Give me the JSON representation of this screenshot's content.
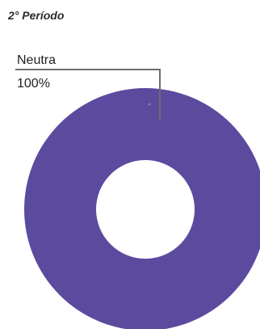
{
  "header": {
    "period_label": "2° Período"
  },
  "chart_data": {
    "type": "pie",
    "style": "donut",
    "categories": [
      "Neutra"
    ],
    "values": [
      100
    ],
    "labels": [
      "100%"
    ],
    "colors": [
      "#5c4a9f"
    ],
    "leader_line_color": "#6e6e6e"
  }
}
